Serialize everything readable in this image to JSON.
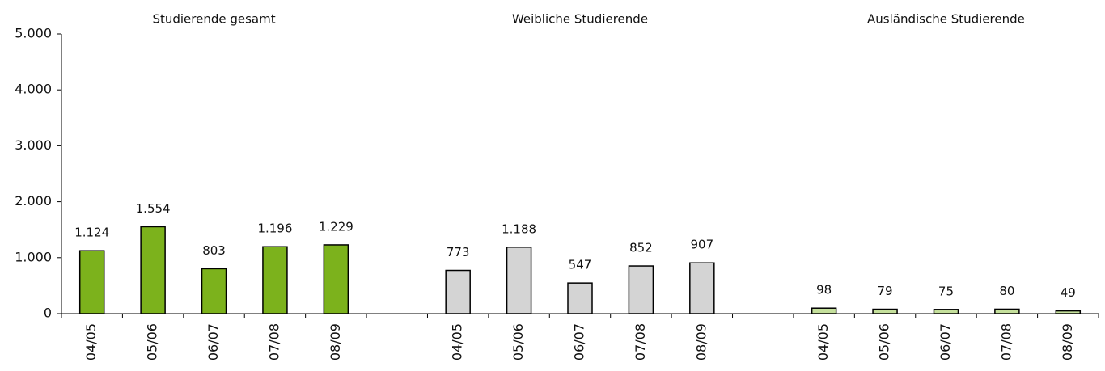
{
  "chart_data": {
    "type": "bar",
    "categories": [
      "04/05",
      "05/06",
      "06/07",
      "07/08",
      "08/09",
      null,
      "04/05",
      "05/06",
      "06/07",
      "07/08",
      "08/09",
      null,
      "04/05",
      "05/06",
      "06/07",
      "07/08",
      "08/09"
    ],
    "series": [
      {
        "name": "Studierende gesamt",
        "color": "#7cb21c",
        "values": [
          1124,
          1554,
          803,
          1196,
          1229,
          null,
          null,
          null,
          null,
          null,
          null,
          null,
          null,
          null,
          null,
          null,
          null
        ],
        "value_labels": [
          "1.124",
          "1.554",
          "803",
          "1.196",
          "1.229",
          null,
          null,
          null,
          null,
          null,
          null,
          null,
          null,
          null,
          null,
          null,
          null
        ]
      },
      {
        "name": "Weibliche Studierende",
        "color": "#d4d4d4",
        "values": [
          null,
          null,
          null,
          null,
          null,
          null,
          773,
          1188,
          547,
          852,
          907,
          null,
          null,
          null,
          null,
          null,
          null
        ],
        "value_labels": [
          null,
          null,
          null,
          null,
          null,
          null,
          "773",
          "1.188",
          "547",
          "852",
          "907",
          null,
          null,
          null,
          null,
          null,
          null
        ]
      },
      {
        "name": "Ausländische Studierende",
        "color": "#c5e09c",
        "values": [
          null,
          null,
          null,
          null,
          null,
          null,
          null,
          null,
          null,
          null,
          null,
          null,
          98,
          79,
          75,
          80,
          49
        ],
        "value_labels": [
          null,
          null,
          null,
          null,
          null,
          null,
          null,
          null,
          null,
          null,
          null,
          null,
          "98",
          "79",
          "75",
          "80",
          "49"
        ]
      }
    ],
    "ylim": [
      0,
      5000
    ],
    "yticks": [
      0,
      {
        "value": 1000,
        "label": "1.000"
      },
      {
        "value": 2000,
        "label": "2.000"
      },
      {
        "value": 3000,
        "label": "3.000"
      },
      {
        "value": 4000,
        "label": "4.000"
      },
      {
        "value": 5000,
        "label": "5.000"
      }
    ],
    "grid": false
  }
}
